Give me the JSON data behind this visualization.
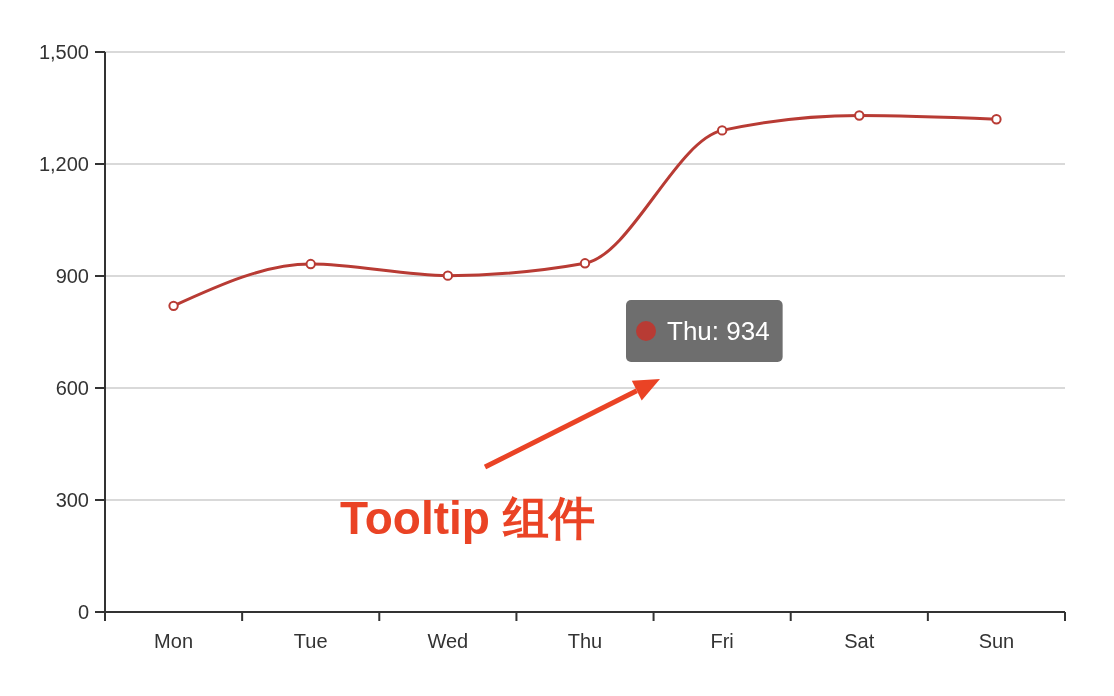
{
  "chart_data": {
    "type": "line",
    "categories": [
      "Mon",
      "Tue",
      "Wed",
      "Thu",
      "Fri",
      "Sat",
      "Sun"
    ],
    "values": [
      820,
      932,
      901,
      934,
      1290,
      1330,
      1320
    ],
    "color": "#b83b34",
    "ylim": [
      0,
      1500
    ],
    "yticks": [
      0,
      300,
      600,
      900,
      {
        "value": 1200,
        "label": "1,200"
      },
      {
        "value": 1500,
        "label": "1,500"
      }
    ],
    "grid": "y",
    "marker": "circle",
    "line_style": "solid",
    "annotations": [
      "Thu: 934",
      "Tooltip 组件"
    ]
  }
}
